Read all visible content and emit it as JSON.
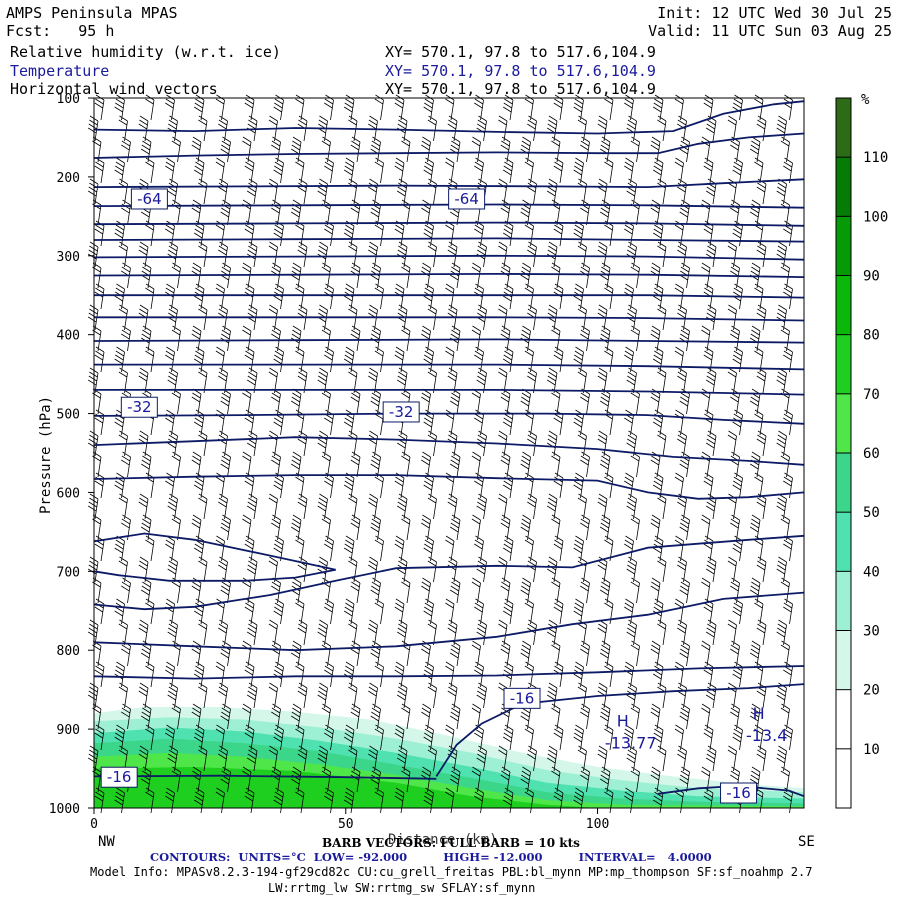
{
  "header": {
    "model": "AMPS Peninsula MPAS",
    "fcst": "Fcst:   95 h",
    "init": "Init: 12 UTC Wed 30 Jul 25",
    "valid": "Valid: 11 UTC Sun 03 Aug 25",
    "field1": "Relative humidity (w.r.t. ice)",
    "field2": "Temperature",
    "field3": "Horizontal wind vectors",
    "xy1": "XY= 570.1, 97.8 to 517.6,104.9",
    "xy2": "XY= 570.1, 97.8 to 517.6,104.9",
    "xy3": "XY= 570.1, 97.8 to 517.6,104.9"
  },
  "colors": {
    "contour": "#0d1a66",
    "barb": "#000000",
    "temp_label": "#1a1a9c",
    "rh_scale": [
      "#ffffff",
      "#ffffff",
      "#ffffff",
      "#d4f7ea",
      "#9ef0d5",
      "#4fe2b0",
      "#3cd68a",
      "#4fe64a",
      "#1fcf1f",
      "#0ab80a",
      "#079a07",
      "#057c05",
      "#2e6b16",
      "#4b5e1c",
      "#c82a0a"
    ]
  },
  "chart_data": {
    "type": "contour",
    "xlabel": "Distance (km)",
    "ylabel": "Pressure (hPa)",
    "xlim": [
      0,
      141
    ],
    "ylim": [
      1000,
      100
    ],
    "x_ticks": [
      "0",
      "50",
      "100"
    ],
    "y_ticks": [
      "100",
      "200",
      "300",
      "400",
      "500",
      "600",
      "700",
      "800",
      "900",
      "1000"
    ],
    "left_end": "NW",
    "right_end": "SE",
    "colorbar": {
      "unit": "%",
      "ticks": [
        "10",
        "20",
        "30",
        "40",
        "50",
        "60",
        "70",
        "80",
        "90",
        "100",
        "110"
      ]
    },
    "temperature_labels": [
      {
        "text": "-64",
        "x": 11,
        "p": 228
      },
      {
        "text": "-64",
        "x": 74,
        "p": 228
      },
      {
        "text": "-32",
        "x": 9,
        "p": 492
      },
      {
        "text": "-32",
        "x": 61,
        "p": 498
      },
      {
        "text": "-16",
        "x": 85,
        "p": 861
      },
      {
        "text": "-16",
        "x": 5,
        "p": 961
      },
      {
        "text": "-16",
        "x": 128,
        "p": 981
      }
    ],
    "highs": [
      {
        "symbol": "H",
        "value": "-13.77",
        "x": 105,
        "p": 897
      },
      {
        "symbol": "H",
        "value": "-13.4",
        "x": 132,
        "p": 887
      }
    ],
    "contours": [
      [
        [
          0,
          140
        ],
        [
          20,
          142
        ],
        [
          40,
          138
        ],
        [
          60,
          140
        ],
        [
          80,
          143
        ],
        [
          100,
          145
        ],
        [
          115,
          142
        ],
        [
          125,
          120
        ],
        [
          135,
          108
        ],
        [
          141,
          104
        ]
      ],
      [
        [
          0,
          176
        ],
        [
          20,
          173
        ],
        [
          40,
          171
        ],
        [
          60,
          170
        ],
        [
          80,
          169
        ],
        [
          100,
          170
        ],
        [
          112,
          170
        ],
        [
          120,
          158
        ],
        [
          130,
          150
        ],
        [
          141,
          145
        ]
      ],
      [
        [
          0,
          213
        ],
        [
          30,
          212
        ],
        [
          60,
          211
        ],
        [
          90,
          212
        ],
        [
          110,
          213
        ],
        [
          125,
          208
        ],
        [
          141,
          203
        ]
      ],
      [
        [
          0,
          237
        ],
        [
          40,
          236
        ],
        [
          80,
          235
        ],
        [
          110,
          236
        ],
        [
          141,
          239
        ]
      ],
      [
        [
          0,
          260
        ],
        [
          40,
          259
        ],
        [
          80,
          258
        ],
        [
          110,
          259
        ],
        [
          141,
          262
        ]
      ],
      [
        [
          0,
          280
        ],
        [
          40,
          279
        ],
        [
          80,
          278
        ],
        [
          110,
          280
        ],
        [
          141,
          282
        ]
      ],
      [
        [
          0,
          302
        ],
        [
          40,
          301
        ],
        [
          80,
          300
        ],
        [
          110,
          301
        ],
        [
          141,
          305
        ]
      ],
      [
        [
          0,
          325
        ],
        [
          40,
          324
        ],
        [
          80,
          323
        ],
        [
          110,
          324
        ],
        [
          141,
          327
        ]
      ],
      [
        [
          0,
          350
        ],
        [
          40,
          350
        ],
        [
          80,
          350
        ],
        [
          110,
          350
        ],
        [
          141,
          353
        ]
      ],
      [
        [
          0,
          378
        ],
        [
          40,
          378
        ],
        [
          80,
          378
        ],
        [
          110,
          379
        ],
        [
          141,
          382
        ]
      ],
      [
        [
          0,
          408
        ],
        [
          40,
          407
        ],
        [
          80,
          406
        ],
        [
          110,
          408
        ],
        [
          141,
          410
        ]
      ],
      [
        [
          0,
          438
        ],
        [
          40,
          438
        ],
        [
          80,
          438
        ],
        [
          110,
          440
        ],
        [
          141,
          444
        ]
      ],
      [
        [
          0,
          470
        ],
        [
          40,
          470
        ],
        [
          80,
          470
        ],
        [
          110,
          472
        ],
        [
          141,
          476
        ]
      ],
      [
        [
          0,
          503
        ],
        [
          30,
          502
        ],
        [
          60,
          500
        ],
        [
          90,
          500
        ],
        [
          110,
          502
        ],
        [
          125,
          508
        ],
        [
          141,
          513
        ]
      ],
      [
        [
          0,
          540
        ],
        [
          20,
          535
        ],
        [
          40,
          530
        ],
        [
          60,
          533
        ],
        [
          80,
          538
        ],
        [
          100,
          545
        ],
        [
          115,
          555
        ],
        [
          130,
          560
        ],
        [
          141,
          565
        ]
      ],
      [
        [
          0,
          583
        ],
        [
          20,
          580
        ],
        [
          40,
          578
        ],
        [
          60,
          578
        ],
        [
          80,
          582
        ],
        [
          100,
          585
        ],
        [
          110,
          600
        ],
        [
          120,
          608
        ],
        [
          130,
          606
        ],
        [
          141,
          600
        ]
      ],
      [
        [
          0,
          662
        ],
        [
          10,
          652
        ],
        [
          20,
          660
        ],
        [
          35,
          680
        ],
        [
          48,
          698
        ],
        [
          40,
          708
        ],
        [
          30,
          712
        ],
        [
          15,
          712
        ],
        [
          5,
          705
        ],
        [
          0,
          700
        ]
      ],
      [
        [
          0,
          742
        ],
        [
          10,
          748
        ],
        [
          20,
          745
        ],
        [
          35,
          730
        ],
        [
          48,
          712
        ],
        [
          60,
          696
        ],
        [
          80,
          693
        ],
        [
          95,
          695
        ],
        [
          110,
          670
        ],
        [
          120,
          665
        ],
        [
          130,
          660
        ],
        [
          141,
          655
        ]
      ],
      [
        [
          0,
          790
        ],
        [
          20,
          795
        ],
        [
          40,
          800
        ],
        [
          60,
          795
        ],
        [
          80,
          783
        ],
        [
          95,
          767
        ],
        [
          110,
          755
        ],
        [
          125,
          735
        ],
        [
          141,
          727
        ]
      ],
      [
        [
          0,
          833
        ],
        [
          20,
          836
        ],
        [
          40,
          833
        ],
        [
          60,
          833
        ],
        [
          80,
          832
        ],
        [
          100,
          828
        ],
        [
          120,
          823
        ],
        [
          141,
          820
        ]
      ],
      [
        [
          68,
          960
        ],
        [
          72,
          920
        ],
        [
          77,
          893
        ],
        [
          85,
          868
        ],
        [
          100,
          858
        ],
        [
          115,
          852
        ],
        [
          130,
          848
        ],
        [
          141,
          843
        ]
      ],
      [
        [
          0,
          960
        ],
        [
          25,
          959
        ],
        [
          50,
          961
        ],
        [
          68,
          963
        ]
      ],
      [
        [
          112,
          982
        ],
        [
          120,
          975
        ],
        [
          128,
          972
        ],
        [
          138,
          978
        ],
        [
          141,
          985
        ]
      ]
    ],
    "rh_fill": [
      {
        "level": "30",
        "boundary": [
          [
            0,
            880
          ],
          [
            10,
            872
          ],
          [
            25,
            872
          ],
          [
            40,
            878
          ],
          [
            55,
            888
          ],
          [
            70,
            908
          ],
          [
            85,
            930
          ],
          [
            100,
            948
          ],
          [
            115,
            960
          ],
          [
            130,
            970
          ],
          [
            141,
            975
          ]
        ]
      },
      {
        "level": "40",
        "boundary": [
          [
            0,
            890
          ],
          [
            15,
            885
          ],
          [
            30,
            888
          ],
          [
            45,
            898
          ],
          [
            60,
            912
          ],
          [
            75,
            930
          ],
          [
            90,
            952
          ],
          [
            105,
            965
          ],
          [
            120,
            975
          ],
          [
            141,
            980
          ]
        ]
      },
      {
        "level": "50",
        "boundary": [
          [
            0,
            905
          ],
          [
            15,
            898
          ],
          [
            30,
            903
          ],
          [
            45,
            915
          ],
          [
            60,
            930
          ],
          [
            75,
            948
          ],
          [
            90,
            968
          ],
          [
            105,
            978
          ],
          [
            120,
            985
          ],
          [
            141,
            988
          ]
        ]
      },
      {
        "level": "60",
        "boundary": [
          [
            0,
            918
          ],
          [
            15,
            912
          ],
          [
            30,
            918
          ],
          [
            45,
            928
          ],
          [
            60,
            945
          ],
          [
            75,
            962
          ],
          [
            90,
            980
          ],
          [
            105,
            988
          ],
          [
            120,
            992
          ],
          [
            141,
            994
          ]
        ]
      },
      {
        "level": "70",
        "boundary": [
          [
            0,
            935
          ],
          [
            15,
            930
          ],
          [
            30,
            935
          ],
          [
            45,
            945
          ],
          [
            60,
            958
          ],
          [
            75,
            975
          ],
          [
            90,
            990
          ],
          [
            105,
            996
          ],
          [
            141,
            998
          ]
        ]
      },
      {
        "level": "80",
        "boundary": [
          [
            0,
            950
          ],
          [
            20,
            948
          ],
          [
            40,
            953
          ],
          [
            60,
            968
          ],
          [
            75,
            985
          ],
          [
            90,
            996
          ],
          [
            100,
            1000
          ],
          [
            141,
            1000
          ]
        ]
      }
    ]
  },
  "footer": {
    "barb_note": "BARB VECTORS: FULL BARB = 10 kts",
    "contours_note": "CONTOURS:  UNITS=°C  LOW= -92.000         HIGH= -12.000         INTERVAL=   4.0000",
    "model_info": "Model Info: MPASv8.2.3-194-gf29cd82c CU:cu_grell_freitas PBL:bl_mynn MP:mp_thompson SF:sf_noahmp 2.7",
    "model_info2": "LW:rrtmg_lw SW:rrtmg_sw SFLAY:sf_mynn"
  }
}
